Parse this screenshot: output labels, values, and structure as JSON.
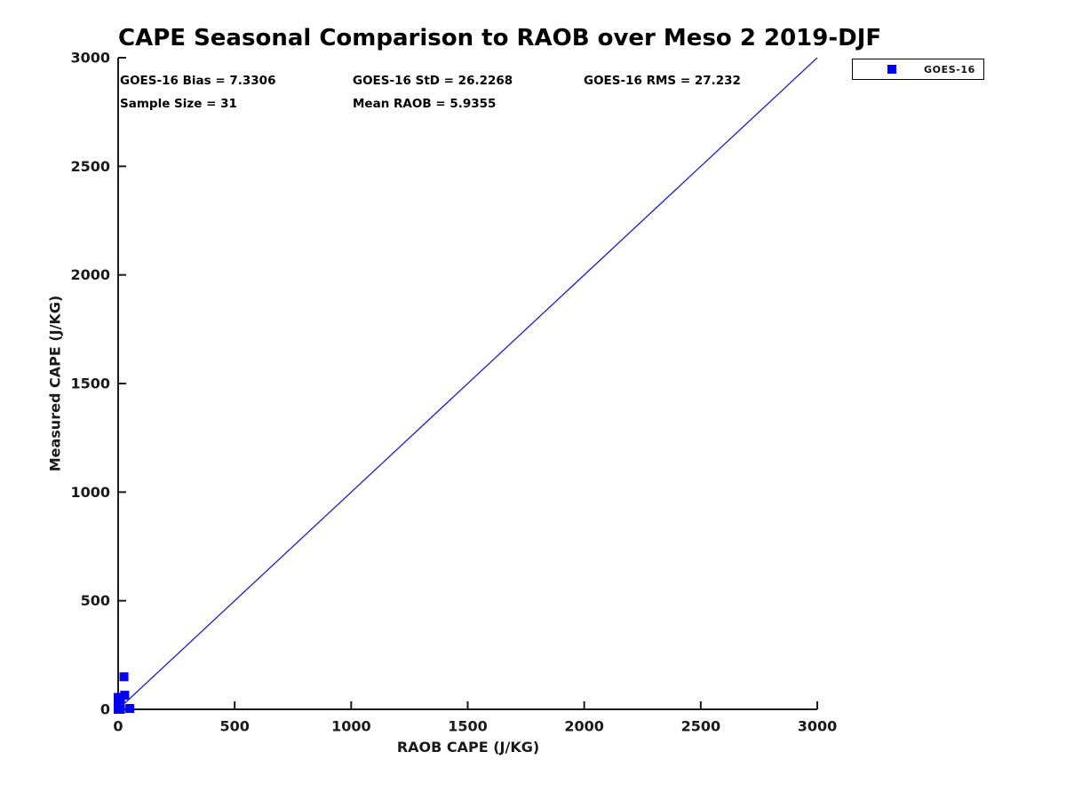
{
  "chart_data": {
    "type": "scatter",
    "title": "CAPE Seasonal Comparison to RAOB over Meso 2 2019-DJF",
    "xlabel": "RAOB CAPE (J/KG)",
    "ylabel": "Measured CAPE (J/KG)",
    "xlim": [
      0,
      3000
    ],
    "ylim": [
      0,
      3000
    ],
    "xticks": [
      0,
      500,
      1000,
      1500,
      2000,
      2500,
      3000
    ],
    "yticks": [
      0,
      500,
      1000,
      1500,
      2000,
      2500,
      3000
    ],
    "grid": false,
    "legend_position": "top-right-outside",
    "annotations": [
      {
        "id": "bias",
        "text": "GOES-16 Bias = 7.3306"
      },
      {
        "id": "std",
        "text": "GOES-16 StD = 26.2268"
      },
      {
        "id": "rms",
        "text": "GOES-16 RMS = 27.232"
      },
      {
        "id": "sample_size",
        "text": "Sample Size = 31"
      },
      {
        "id": "mean_raob",
        "text": "Mean RAOB = 5.9355"
      }
    ],
    "series": [
      {
        "name": "GOES-16",
        "type": "scatter",
        "marker": "square",
        "color": "#0202f0",
        "points": [
          [
            0,
            0
          ],
          [
            0,
            6
          ],
          [
            0,
            14
          ],
          [
            0,
            22
          ],
          [
            0,
            32
          ],
          [
            0,
            44
          ],
          [
            0,
            55
          ],
          [
            2,
            2
          ],
          [
            2,
            18
          ],
          [
            4,
            0
          ],
          [
            4,
            38
          ],
          [
            6,
            10
          ],
          [
            8,
            26
          ],
          [
            10,
            0
          ],
          [
            10,
            50
          ],
          [
            25,
            150
          ],
          [
            28,
            65
          ],
          [
            50,
            4
          ]
        ]
      }
    ],
    "reference_line": {
      "from": [
        0,
        0
      ],
      "to": [
        3000,
        3000
      ],
      "color": "#1a1ae6",
      "style": "solid"
    }
  },
  "colors": {
    "marker_blue": "#0202f0",
    "line_blue": "#1a1ae6",
    "axis": "#1a1a1a",
    "text": "#000000",
    "background": "#ffffff"
  }
}
